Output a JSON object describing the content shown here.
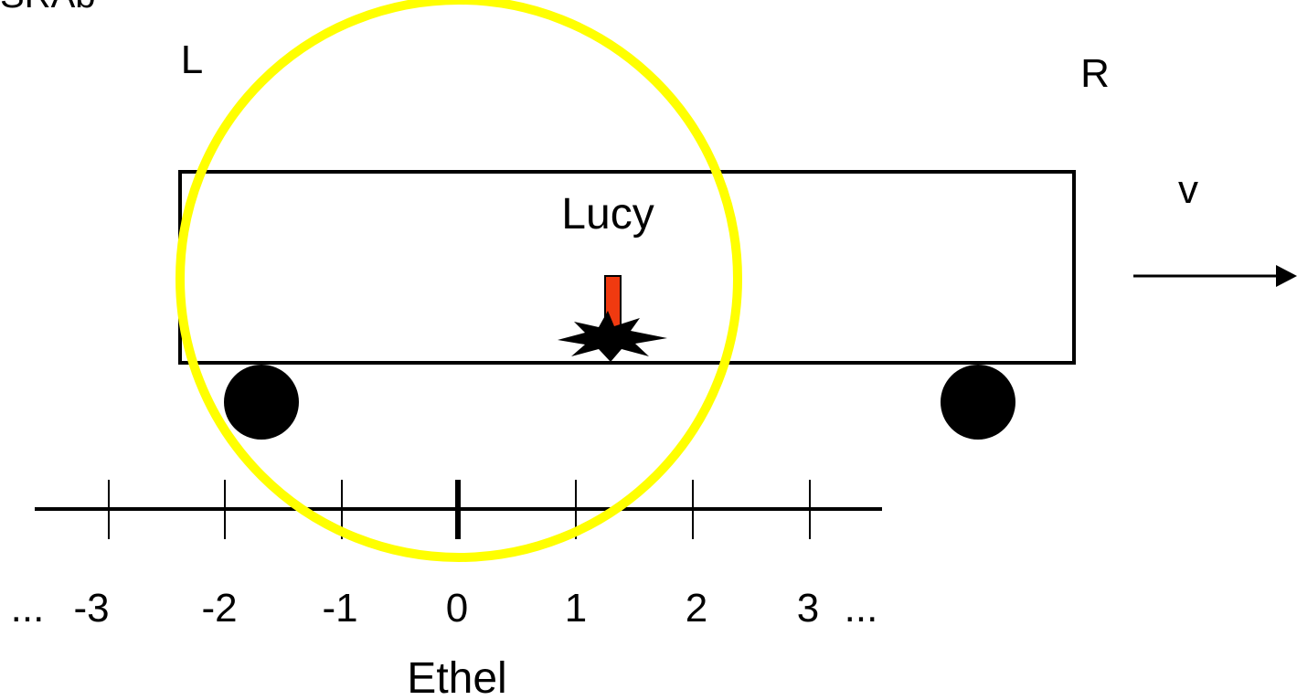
{
  "header": {
    "title": "SRAb"
  },
  "labels": {
    "left": "L",
    "right": "R",
    "train": "Lucy",
    "velocity": "v",
    "observer": "Ethel"
  },
  "number_line": {
    "ticks": [
      "-3",
      "-2",
      "-1",
      "0",
      "1",
      "2",
      "3"
    ],
    "ellipsis_left": "...",
    "ellipsis_right": "..."
  }
}
